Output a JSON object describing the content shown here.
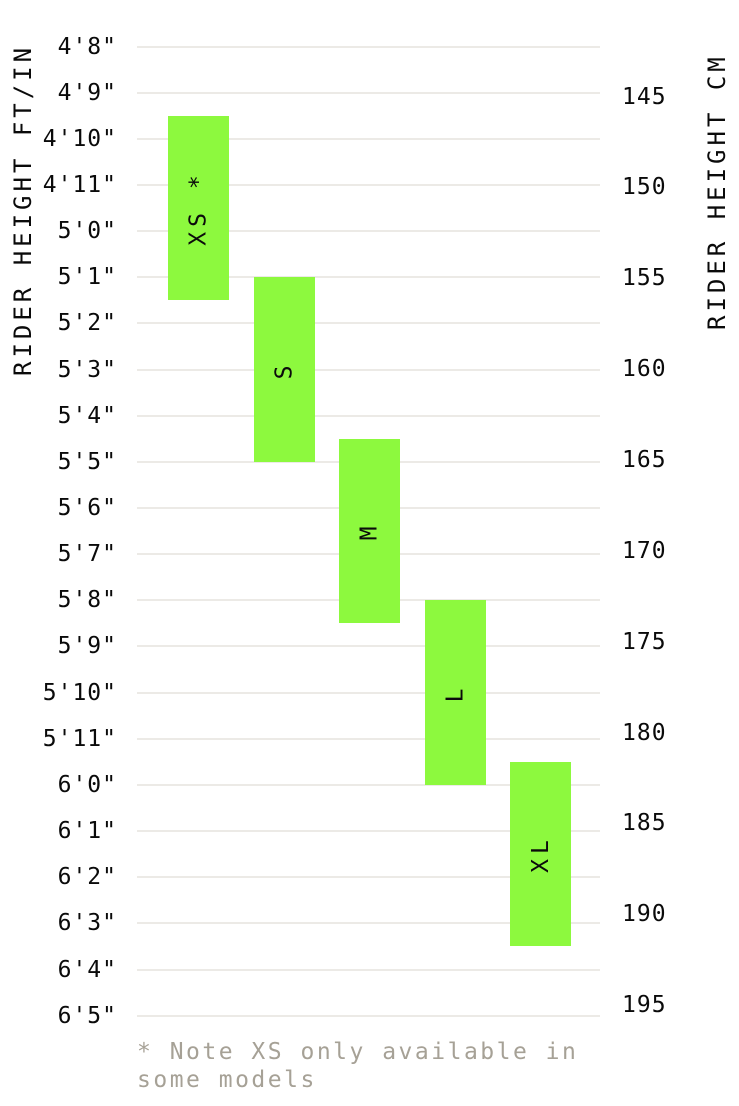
{
  "chart_data": {
    "type": "bar",
    "variant": "floating-range-columns",
    "orientation": "vertical",
    "grid": true,
    "bar_color": "#8DF93E",
    "text_color": "#0a0a0a",
    "gridline_color": "#ECEAE6",
    "footnote_color": "#A6A196",
    "left_axis": {
      "title": "RIDER HEIGHT FT/IN",
      "unit": "ft/in",
      "ticks": [
        "4'8\"",
        "4'9\"",
        "4'10\"",
        "4'11\"",
        "5'0\"",
        "5'1\"",
        "5'2\"",
        "5'3\"",
        "5'4\"",
        "5'5\"",
        "5'6\"",
        "5'7\"",
        "5'8\"",
        "5'9\"",
        "5'10\"",
        "5'11\"",
        "6'0\"",
        "6'1\"",
        "6'2\"",
        "6'3\"",
        "6'4\"",
        "6'5\""
      ],
      "tick_values_in": [
        56,
        57,
        58,
        59,
        60,
        61,
        62,
        63,
        64,
        65,
        66,
        67,
        68,
        69,
        70,
        71,
        72,
        73,
        74,
        75,
        76,
        77
      ]
    },
    "right_axis": {
      "title": "RIDER HEIGHT CM",
      "unit": "cm",
      "ticks": [
        145,
        150,
        155,
        160,
        165,
        170,
        175,
        180,
        185,
        190,
        195
      ]
    },
    "series": [
      {
        "size": "XS",
        "label": "XS *",
        "from_in": 57.5,
        "to_in": 61.5,
        "from_ftin": "4'9.5\"",
        "to_ftin": "5'1.5\"",
        "approx_from_cm": 146,
        "approx_to_cm": 156
      },
      {
        "size": "S",
        "label": "S",
        "from_in": 61,
        "to_in": 65,
        "from_ftin": "5'1\"",
        "to_ftin": "5'5\"",
        "approx_from_cm": 155,
        "approx_to_cm": 165
      },
      {
        "size": "M",
        "label": "M",
        "from_in": 64.5,
        "to_in": 68.5,
        "from_ftin": "5'4.5\"",
        "to_ftin": "5'8.5\"",
        "approx_from_cm": 164,
        "approx_to_cm": 174
      },
      {
        "size": "L",
        "label": "L",
        "from_in": 68,
        "to_in": 72,
        "from_ftin": "5'8\"",
        "to_ftin": "6'0\"",
        "approx_from_cm": 173,
        "approx_to_cm": 183
      },
      {
        "size": "XL",
        "label": "XL",
        "from_in": 71.5,
        "to_in": 75.5,
        "from_ftin": "5'11.5\"",
        "to_ftin": "6'3.5\"",
        "approx_from_cm": 182,
        "approx_to_cm": 192
      }
    ],
    "footnote": "* Note XS only available in\nsome models"
  }
}
